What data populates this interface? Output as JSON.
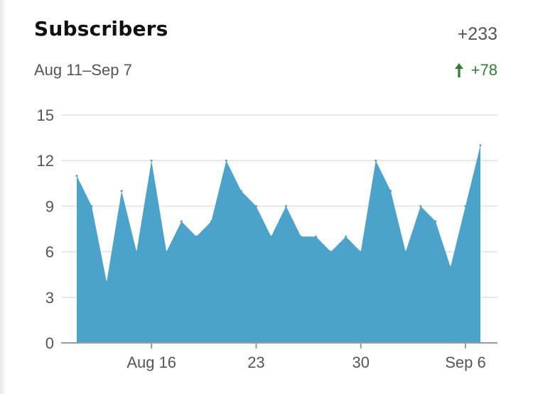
{
  "header": {
    "title": "Subscribers",
    "total": "+233",
    "date_range": "Aug 11–Sep 7",
    "change": "+78",
    "change_icon": "arrow-up-icon",
    "change_color": "#2e7d32"
  },
  "chart_data": {
    "type": "area",
    "title": "Subscribers",
    "xlabel": "",
    "ylabel": "",
    "ylim": [
      0,
      15
    ],
    "yticks": [
      0,
      3,
      6,
      9,
      12,
      15
    ],
    "grid": true,
    "legend": "none",
    "fill_color": "#4ba3cc",
    "x": [
      "Aug 11",
      "Aug 12",
      "Aug 13",
      "Aug 14",
      "Aug 15",
      "Aug 16",
      "Aug 17",
      "Aug 18",
      "Aug 19",
      "Aug 20",
      "Aug 21",
      "Aug 22",
      "Aug 23",
      "Aug 24",
      "Aug 25",
      "Aug 26",
      "Aug 27",
      "Aug 28",
      "Aug 29",
      "Aug 30",
      "Aug 31",
      "Sep 1",
      "Sep 2",
      "Sep 3",
      "Sep 4",
      "Sep 5",
      "Sep 6",
      "Sep 7"
    ],
    "xtick_labels": [
      {
        "index": 5,
        "label": "Aug 16"
      },
      {
        "index": 12,
        "label": "23"
      },
      {
        "index": 19,
        "label": "30"
      },
      {
        "index": 26,
        "label": "Sep 6"
      }
    ],
    "series": [
      {
        "values": [
          11,
          9,
          4,
          10,
          6,
          12,
          6,
          8,
          7,
          8,
          12,
          10,
          9,
          7,
          9,
          7,
          7,
          6,
          7,
          6,
          12,
          10,
          6,
          9,
          8,
          5,
          9,
          13
        ]
      }
    ]
  }
}
